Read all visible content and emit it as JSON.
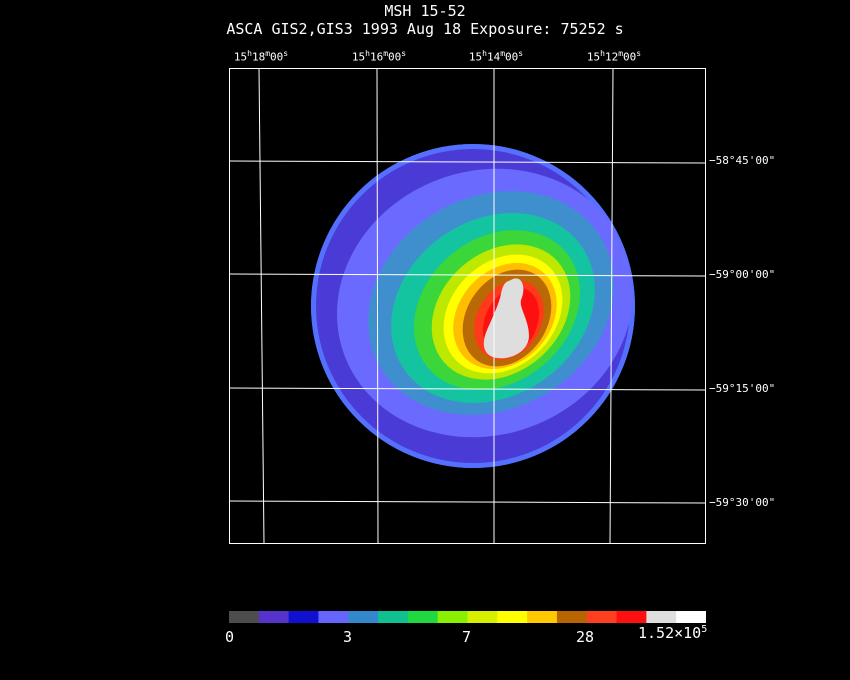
{
  "header": {
    "object": "MSH 15-52",
    "info": "ASCA GIS2,GIS3   1993 Aug 18    Exposure: 75252 s"
  },
  "ra_labels": [
    {
      "h": "15",
      "m": "18",
      "s": "00"
    },
    {
      "h": "15",
      "m": "16",
      "s": "00"
    },
    {
      "h": "15",
      "m": "14",
      "s": "00"
    },
    {
      "h": "15",
      "m": "12",
      "s": "00"
    }
  ],
  "dec_labels": [
    "−58°45'00\"",
    "−59°00'00\"",
    "−59°15'00\"",
    "−59°30'00\""
  ],
  "colorbar": {
    "colors": [
      "#4d4d4d",
      "#5533cc",
      "#1010d0",
      "#6666ff",
      "#3388cc",
      "#10c090",
      "#20d840",
      "#88f000",
      "#d8f000",
      "#ffff00",
      "#ffc800",
      "#b86400",
      "#ff4020",
      "#ff1010",
      "#dedede",
      "#ffffff"
    ],
    "labels": {
      "l0": "0",
      "l1": "3",
      "l2": "7",
      "l3": "28",
      "l4_base": "1.52×10",
      "l4_exp": "5"
    }
  },
  "image": {
    "source": "X-ray intensity map",
    "colors": {
      "grid": "#ffffff",
      "edge": "#5570ff",
      "outer": "#4a3bd6",
      "mid1": "#6a6aff",
      "mid2": "#3f8fcf",
      "teal": "#14c3a0",
      "green": "#3ad63a",
      "yellowgreen": "#bde800",
      "yellow": "#ffff00",
      "orange": "#ffbe00",
      "brown": "#b96a05",
      "red1": "#ff3a1a",
      "red2": "#ff1010",
      "core": "#dedede"
    }
  }
}
